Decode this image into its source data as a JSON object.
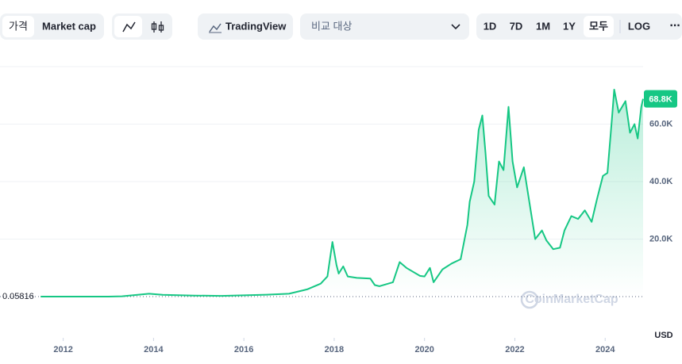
{
  "toolbar": {
    "tabs": [
      "가격",
      "Market cap"
    ],
    "tradingview": "TradingView",
    "compare": "비교 대상",
    "ranges": [
      "1D",
      "7D",
      "1M",
      "1Y",
      "모두"
    ],
    "log": "LOG",
    "more": "⋯"
  },
  "chart_data": {
    "type": "line",
    "color": "#16c784",
    "y_label": "USD",
    "watermark": "CoinMarketCap",
    "x": [
      2011.5,
      2012.0,
      2012.5,
      2013.0,
      2013.3,
      2013.9,
      2014.2,
      2014.9,
      2015.5,
      2016.0,
      2016.5,
      2017.0,
      2017.4,
      2017.7,
      2017.85,
      2017.96,
      2018.05,
      2018.1,
      2018.2,
      2018.3,
      2018.5,
      2018.8,
      2018.9,
      2019.0,
      2019.3,
      2019.45,
      2019.6,
      2019.9,
      2020.0,
      2020.12,
      2020.2,
      2020.4,
      2020.6,
      2020.8,
      2020.95,
      2021.0,
      2021.1,
      2021.2,
      2021.28,
      2021.35,
      2021.42,
      2021.55,
      2021.65,
      2021.75,
      2021.86,
      2021.95,
      2022.05,
      2022.2,
      2022.35,
      2022.45,
      2022.6,
      2022.7,
      2022.85,
      2023.0,
      2023.1,
      2023.25,
      2023.4,
      2023.55,
      2023.7,
      2023.82,
      2023.95,
      2024.05,
      2024.15,
      2024.2,
      2024.3,
      2024.45,
      2024.55,
      2024.65,
      2024.72,
      2024.8,
      2024.84
    ],
    "values": [
      0.05816,
      5,
      7,
      13,
      100,
      1000,
      600,
      350,
      250,
      430,
      650,
      1000,
      2500,
      4500,
      7000,
      19000,
      11000,
      8000,
      10500,
      7000,
      6500,
      6300,
      4000,
      3600,
      5000,
      12000,
      10000,
      7200,
      7000,
      10000,
      5000,
      9500,
      11500,
      13000,
      25000,
      33000,
      40000,
      58000,
      63000,
      50000,
      35000,
      32000,
      47000,
      44000,
      66000,
      47000,
      38000,
      45000,
      30000,
      20000,
      23000,
      19500,
      16500,
      17000,
      23000,
      28000,
      27000,
      30000,
      26000,
      34000,
      42000,
      43000,
      62000,
      72000,
      64000,
      68000,
      57000,
      60000,
      55000,
      66000,
      68800
    ],
    "xlim": [
      2010.6,
      2024.84
    ],
    "xticks": [
      2012,
      2014,
      2016,
      2018,
      2020,
      2022,
      2024
    ],
    "ylim": [
      0,
      80000
    ],
    "yticks": [
      {
        "value": 20000,
        "label": "20.0K"
      },
      {
        "value": 40000,
        "label": "40.0K"
      },
      {
        "value": 60000,
        "label": "60.0K"
      }
    ],
    "grid": true,
    "annotations": [
      {
        "value": 68800,
        "label": "68.8K"
      }
    ]
  }
}
